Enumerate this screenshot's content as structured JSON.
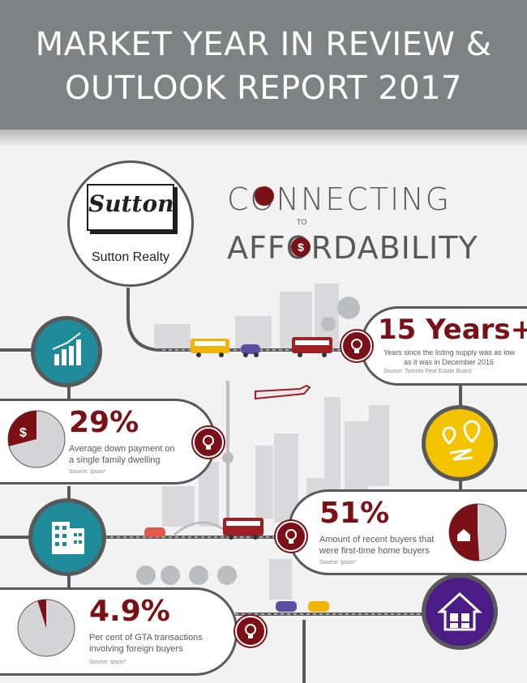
{
  "header": {
    "line1": "MARKET YEAR IN REVIEW &",
    "line2": "OUTLOOK REPORT 2017"
  },
  "brand": {
    "logo_word": "Sutton",
    "name": "Sutton Realty"
  },
  "tagline": {
    "word1": "CONNECTING",
    "word2": "TO",
    "word3": "AFFORDABILITY"
  },
  "stats": [
    {
      "value": "15 Years+",
      "desc_l1": "Years since the listing supply was as low",
      "desc_l2": "as it was in December 2016",
      "source": "Source: Toronto Real Estate Board"
    },
    {
      "value": "29%",
      "desc_l1": "Average down payment on",
      "desc_l2": "a single family dwelling",
      "source": "Source: Ipsos*"
    },
    {
      "value": "51%",
      "desc_l1": "Amount of recent buyers that",
      "desc_l2": "were first-time home buyers",
      "source": "Source: Ipsos*"
    },
    {
      "value": "4.9%",
      "desc_l1": "Per cent of GTA transactions",
      "desc_l2": "involving foreign buyers",
      "source": "Source: Ipsos*"
    }
  ],
  "pie_values": {
    "down_payment_percent": 29,
    "first_time_percent": 51,
    "foreign_percent": 4.9
  },
  "colors": {
    "header": "#808184",
    "accent": "#7b1116",
    "teal": "#1f8a9a",
    "yellow": "#f3c300",
    "purple": "#4b1c86",
    "road": "#58595b"
  },
  "icons": [
    "chart-icon",
    "dollar-icon",
    "map-route-icon",
    "building-icon",
    "house-icon",
    "house-puzzle-icon",
    "lightbulb-icon"
  ]
}
